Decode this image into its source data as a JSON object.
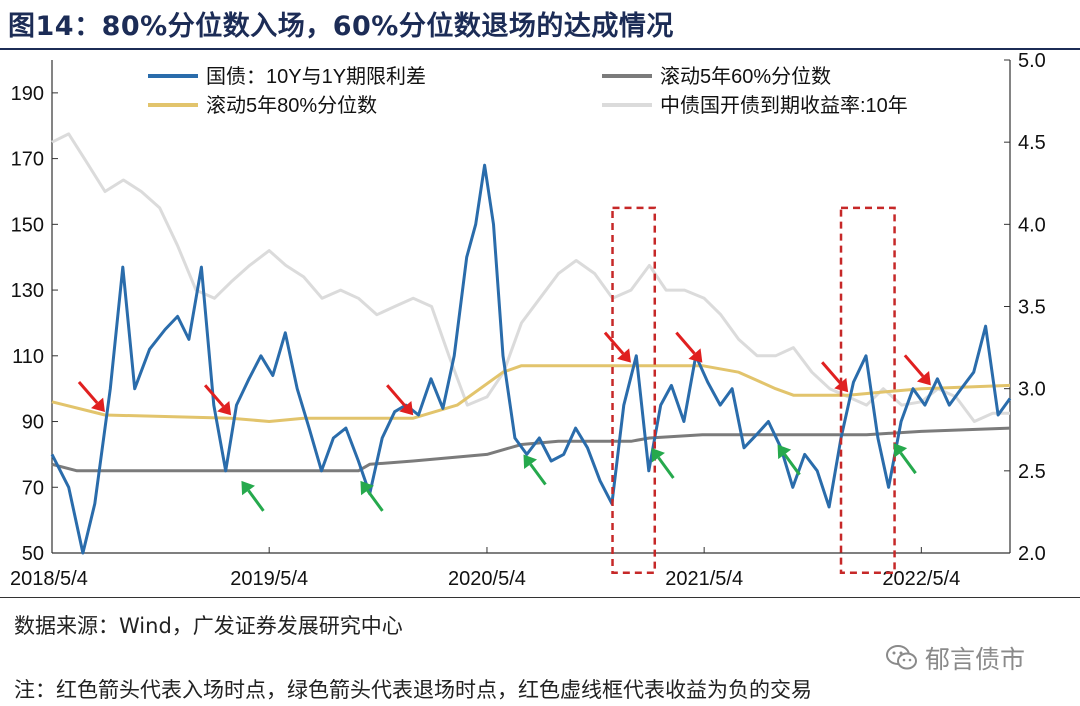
{
  "title": "图14：80%分位数入场，60%分位数退场的达成情况",
  "source": "数据来源：Wind，广发证券发展研究中心",
  "note": "注：红色箭头代表入场时点，绿色箭头代表退场时点，红色虚线框代表收益为负的交易",
  "watermark": "郁言债市",
  "chart_data": {
    "type": "line",
    "title": "",
    "xlabel": "",
    "ylabel": "",
    "x_ticks": [
      "2018/5/4",
      "2019/5/4",
      "2020/5/4",
      "2021/5/4",
      "2022/5/4"
    ],
    "xlim": [
      "2018/5/4",
      "2022/9/30"
    ],
    "y_left": {
      "lim": [
        50,
        200
      ],
      "ticks": [
        "50",
        "70",
        "90",
        "110",
        "130",
        "150",
        "170",
        "190"
      ]
    },
    "y_right": {
      "lim": [
        2.0,
        5.0
      ],
      "ticks": [
        "2.0",
        "2.5",
        "3.0",
        "3.5",
        "4.0",
        "4.5",
        "5.0"
      ]
    },
    "grid": false,
    "legend": "top",
    "series": [
      {
        "name": "国债：10Y与1Y期限利差",
        "axis": "left",
        "color": "#2a6cab",
        "points": [
          [
            "2018/5/4",
            80
          ],
          [
            "2018/6/1",
            70
          ],
          [
            "2018/6/25",
            50
          ],
          [
            "2018/7/15",
            65
          ],
          [
            "2018/8/10",
            100
          ],
          [
            "2018/8/31",
            137
          ],
          [
            "2018/9/20",
            100
          ],
          [
            "2018/10/15",
            112
          ],
          [
            "2018/11/10",
            118
          ],
          [
            "2018/12/1",
            122
          ],
          [
            "2018/12/20",
            115
          ],
          [
            "2019/1/10",
            137
          ],
          [
            "2019/1/31",
            95
          ],
          [
            "2019/2/20",
            75
          ],
          [
            "2019/3/10",
            95
          ],
          [
            "2019/3/31",
            103
          ],
          [
            "2019/4/20",
            110
          ],
          [
            "2019/5/10",
            104
          ],
          [
            "2019/5/31",
            117
          ],
          [
            "2019/6/20",
            100
          ],
          [
            "2019/7/10",
            88
          ],
          [
            "2019/7/31",
            75
          ],
          [
            "2019/8/20",
            85
          ],
          [
            "2019/9/10",
            88
          ],
          [
            "2019/10/1",
            78
          ],
          [
            "2019/10/20",
            68
          ],
          [
            "2019/11/10",
            85
          ],
          [
            "2019/12/1",
            93
          ],
          [
            "2019/12/20",
            95
          ],
          [
            "2020/1/10",
            92
          ],
          [
            "2020/1/31",
            103
          ],
          [
            "2020/2/20",
            94
          ],
          [
            "2020/3/10",
            110
          ],
          [
            "2020/3/31",
            140
          ],
          [
            "2020/4/15",
            150
          ],
          [
            "2020/4/30",
            168
          ],
          [
            "2020/5/15",
            150
          ],
          [
            "2020/5/31",
            110
          ],
          [
            "2020/6/20",
            85
          ],
          [
            "2020/7/10",
            80
          ],
          [
            "2020/7/31",
            85
          ],
          [
            "2020/8/20",
            78
          ],
          [
            "2020/9/10",
            80
          ],
          [
            "2020/9/30",
            88
          ],
          [
            "2020/10/20",
            82
          ],
          [
            "2020/11/10",
            72
          ],
          [
            "2020/11/30",
            65
          ],
          [
            "2020/12/20",
            95
          ],
          [
            "2021/1/10",
            110
          ],
          [
            "2021/1/31",
            75
          ],
          [
            "2021/2/20",
            95
          ],
          [
            "2021/3/10",
            101
          ],
          [
            "2021/3/31",
            90
          ],
          [
            "2021/4/20",
            110
          ],
          [
            "2021/5/10",
            102
          ],
          [
            "2021/5/31",
            95
          ],
          [
            "2021/6/20",
            100
          ],
          [
            "2021/7/10",
            82
          ],
          [
            "2021/7/31",
            86
          ],
          [
            "2021/8/20",
            90
          ],
          [
            "2021/9/10",
            82
          ],
          [
            "2021/9/30",
            70
          ],
          [
            "2021/10/20",
            80
          ],
          [
            "2021/11/10",
            75
          ],
          [
            "2021/11/30",
            64
          ],
          [
            "2021/12/20",
            85
          ],
          [
            "2022/1/10",
            102
          ],
          [
            "2022/1/31",
            110
          ],
          [
            "2022/2/20",
            85
          ],
          [
            "2022/3/10",
            70
          ],
          [
            "2022/3/31",
            90
          ],
          [
            "2022/4/20",
            100
          ],
          [
            "2022/5/10",
            95
          ],
          [
            "2022/5/31",
            103
          ],
          [
            "2022/6/20",
            95
          ],
          [
            "2022/7/10",
            100
          ],
          [
            "2022/7/31",
            105
          ],
          [
            "2022/8/20",
            119
          ],
          [
            "2022/9/10",
            92
          ],
          [
            "2022/9/30",
            97
          ]
        ]
      },
      {
        "name": "滚动5年60%分位数",
        "axis": "left",
        "color": "#7b7b7b",
        "points": [
          [
            "2018/5/4",
            77
          ],
          [
            "2018/6/15",
            75
          ],
          [
            "2018/12/1",
            75
          ],
          [
            "2019/10/1",
            75
          ],
          [
            "2019/10/20",
            77
          ],
          [
            "2020/1/1",
            78
          ],
          [
            "2020/5/4",
            80
          ],
          [
            "2020/7/1",
            83
          ],
          [
            "2020/9/1",
            84
          ],
          [
            "2021/1/1",
            84
          ],
          [
            "2021/2/1",
            85
          ],
          [
            "2021/5/1",
            86
          ],
          [
            "2022/2/1",
            86
          ],
          [
            "2022/5/4",
            87
          ],
          [
            "2022/9/30",
            88
          ]
        ]
      },
      {
        "name": "滚动5年80%分位数",
        "axis": "left",
        "color": "#e2c46c",
        "points": [
          [
            "2018/5/4",
            96
          ],
          [
            "2018/8/1",
            92
          ],
          [
            "2019/3/1",
            91
          ],
          [
            "2019/5/4",
            90
          ],
          [
            "2019/7/1",
            91
          ],
          [
            "2020/1/1",
            91
          ],
          [
            "2020/3/15",
            95
          ],
          [
            "2020/5/31",
            105
          ],
          [
            "2020/7/1",
            107
          ],
          [
            "2020/10/1",
            107
          ],
          [
            "2021/5/1",
            107
          ],
          [
            "2021/7/1",
            105
          ],
          [
            "2021/9/1",
            100
          ],
          [
            "2021/10/1",
            98
          ],
          [
            "2022/1/1",
            98
          ],
          [
            "2022/3/1",
            99
          ],
          [
            "2022/5/4",
            100
          ],
          [
            "2022/9/30",
            101
          ]
        ]
      },
      {
        "name": "中债国开债到期收益率:10年",
        "axis": "right",
        "color": "#dbdbdb",
        "points": [
          [
            "2018/5/4",
            4.5
          ],
          [
            "2018/6/1",
            4.55
          ],
          [
            "2018/7/1",
            4.38
          ],
          [
            "2018/8/1",
            4.2
          ],
          [
            "2018/9/1",
            4.27
          ],
          [
            "2018/10/1",
            4.2
          ],
          [
            "2018/11/1",
            4.1
          ],
          [
            "2018/12/1",
            3.87
          ],
          [
            "2019/1/1",
            3.6
          ],
          [
            "2019/2/1",
            3.55
          ],
          [
            "2019/3/1",
            3.65
          ],
          [
            "2019/4/1",
            3.75
          ],
          [
            "2019/5/4",
            3.84
          ],
          [
            "2019/6/1",
            3.75
          ],
          [
            "2019/7/1",
            3.68
          ],
          [
            "2019/8/1",
            3.55
          ],
          [
            "2019/9/1",
            3.6
          ],
          [
            "2019/10/1",
            3.55
          ],
          [
            "2019/11/1",
            3.45
          ],
          [
            "2019/12/1",
            3.5
          ],
          [
            "2020/1/1",
            3.55
          ],
          [
            "2020/2/1",
            3.5
          ],
          [
            "2020/3/1",
            3.2
          ],
          [
            "2020/4/1",
            2.9
          ],
          [
            "2020/5/4",
            2.95
          ],
          [
            "2020/6/1",
            3.1
          ],
          [
            "2020/7/1",
            3.4
          ],
          [
            "2020/8/1",
            3.55
          ],
          [
            "2020/9/1",
            3.7
          ],
          [
            "2020/10/1",
            3.78
          ],
          [
            "2020/11/1",
            3.7
          ],
          [
            "2020/12/1",
            3.55
          ],
          [
            "2021/1/1",
            3.6
          ],
          [
            "2021/2/1",
            3.75
          ],
          [
            "2021/3/1",
            3.6
          ],
          [
            "2021/4/1",
            3.6
          ],
          [
            "2021/5/4",
            3.55
          ],
          [
            "2021/6/1",
            3.45
          ],
          [
            "2021/7/1",
            3.3
          ],
          [
            "2021/8/1",
            3.2
          ],
          [
            "2021/9/1",
            3.2
          ],
          [
            "2021/10/1",
            3.25
          ],
          [
            "2021/11/1",
            3.1
          ],
          [
            "2021/12/1",
            3.0
          ],
          [
            "2022/1/1",
            2.95
          ],
          [
            "2022/2/1",
            2.9
          ],
          [
            "2022/3/1",
            3.0
          ],
          [
            "2022/4/1",
            2.9
          ],
          [
            "2022/5/4",
            2.92
          ],
          [
            "2022/6/1",
            3.0
          ],
          [
            "2022/7/1",
            2.95
          ],
          [
            "2022/8/1",
            2.8
          ],
          [
            "2022/9/1",
            2.85
          ],
          [
            "2022/9/30",
            2.85
          ]
        ]
      }
    ],
    "annotations": {
      "entry_arrows": {
        "color": "#e02020",
        "dates": [
          "2018/8/1",
          "2019/3/1",
          "2020/1/1",
          "2021/1/1",
          "2021/5/1",
          "2022/1/1",
          "2022/5/20"
        ]
      },
      "exit_arrows": {
        "color": "#26a94d",
        "dates": [
          "2019/3/15",
          "2019/10/1",
          "2020/7/1",
          "2021/2/1",
          "2021/9/1",
          "2022/3/15"
        ]
      },
      "negative_trade_boxes": {
        "color": "#c62828",
        "ranges": [
          [
            "2020/12/1",
            "2021/2/10"
          ],
          [
            "2021/12/20",
            "2022/3/20"
          ]
        ]
      }
    }
  }
}
